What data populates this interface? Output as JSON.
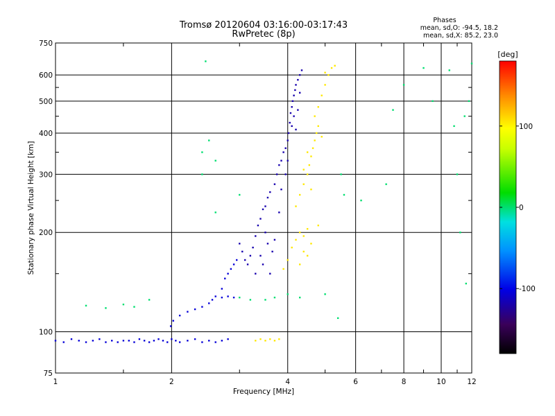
{
  "chart_data": {
    "type": "scatter",
    "title": "Tromsø 20120604 03:16:00-03:17:43",
    "subtitle": "RwPretec (8p)",
    "xlabel": "Frequency [MHz]",
    "ylabel": "Stationary phase Virtual Height [km]",
    "x_scale": "log",
    "y_scale": "log",
    "xlim": [
      1,
      12
    ],
    "ylim": [
      75,
      750
    ],
    "grid": true,
    "x_ticks": [
      1,
      2,
      4,
      6,
      8,
      10,
      12
    ],
    "y_ticks": [
      75,
      100,
      200,
      300,
      400,
      500,
      600,
      750
    ],
    "phase_stats": {
      "heading": "Phases",
      "line_o": "mean, sd,O: -94.5, 18.2",
      "line_x": "mean, sd,X:  85.2, 23.0"
    },
    "colorbar": {
      "label": "[deg]",
      "range": [
        -180,
        180
      ],
      "ticks": [
        100,
        0,
        -100
      ]
    },
    "series": [
      {
        "points": [
          [
            1.0,
            94
          ],
          [
            1.05,
            93
          ],
          [
            1.1,
            95
          ],
          [
            1.15,
            94
          ],
          [
            1.2,
            93
          ],
          [
            1.25,
            94
          ],
          [
            1.3,
            95
          ],
          [
            1.35,
            93
          ],
          [
            1.4,
            94
          ],
          [
            1.45,
            93
          ],
          [
            1.5,
            94
          ],
          [
            1.55,
            94
          ],
          [
            1.6,
            93
          ],
          [
            1.65,
            95
          ],
          [
            1.7,
            94
          ],
          [
            1.75,
            93
          ],
          [
            1.8,
            94
          ],
          [
            1.85,
            95
          ],
          [
            1.9,
            94
          ],
          [
            1.95,
            93
          ],
          [
            2.0,
            95
          ],
          [
            2.05,
            94
          ],
          [
            2.1,
            93
          ],
          [
            2.2,
            94
          ],
          [
            2.3,
            95
          ],
          [
            2.4,
            93
          ],
          [
            2.5,
            94
          ],
          [
            2.6,
            93
          ],
          [
            2.7,
            94
          ],
          [
            2.8,
            95
          ],
          [
            1.99,
            104
          ],
          [
            2.02,
            108
          ],
          [
            2.1,
            112
          ],
          [
            2.2,
            115
          ],
          [
            2.3,
            117
          ],
          [
            2.4,
            119
          ],
          [
            2.5,
            122
          ],
          [
            2.55,
            125
          ],
          [
            2.6,
            128
          ],
          [
            2.7,
            135
          ],
          [
            2.75,
            145
          ],
          [
            2.8,
            150
          ],
          [
            2.85,
            155
          ],
          [
            2.9,
            160
          ],
          [
            2.95,
            165
          ],
          [
            2.7,
            127
          ],
          [
            2.8,
            128
          ],
          [
            2.9,
            127
          ]
        ],
        "phase": -105
      },
      {
        "points": [
          [
            3.0,
            185
          ],
          [
            3.05,
            175
          ],
          [
            3.1,
            165
          ],
          [
            3.15,
            160
          ],
          [
            3.2,
            170
          ],
          [
            3.25,
            180
          ],
          [
            3.3,
            195
          ],
          [
            3.35,
            210
          ],
          [
            3.4,
            220
          ],
          [
            3.45,
            235
          ],
          [
            3.5,
            240
          ],
          [
            3.55,
            255
          ],
          [
            3.6,
            265
          ],
          [
            3.7,
            280
          ],
          [
            3.75,
            300
          ],
          [
            3.8,
            320
          ],
          [
            3.85,
            330
          ],
          [
            3.9,
            350
          ],
          [
            3.95,
            360
          ],
          [
            4.0,
            380
          ],
          [
            4.02,
            400
          ],
          [
            4.05,
            430
          ],
          [
            4.07,
            460
          ],
          [
            4.1,
            480
          ],
          [
            4.12,
            500
          ],
          [
            4.15,
            520
          ],
          [
            4.18,
            540
          ],
          [
            4.2,
            560
          ],
          [
            4.25,
            580
          ],
          [
            4.3,
            600
          ],
          [
            4.35,
            620
          ],
          [
            3.4,
            170
          ],
          [
            3.6,
            150
          ],
          [
            3.7,
            190
          ],
          [
            3.5,
            200
          ],
          [
            3.8,
            230
          ],
          [
            3.3,
            150
          ],
          [
            3.45,
            160
          ],
          [
            3.65,
            175
          ],
          [
            3.55,
            185
          ],
          [
            3.85,
            270
          ],
          [
            3.95,
            300
          ],
          [
            4.0,
            330
          ],
          [
            4.1,
            420
          ],
          [
            4.15,
            450
          ],
          [
            4.2,
            410
          ],
          [
            4.25,
            470
          ],
          [
            4.3,
            530
          ]
        ],
        "phase": -118
      },
      {
        "points": [
          [
            3.3,
            94
          ],
          [
            3.4,
            95
          ],
          [
            3.5,
            94
          ],
          [
            3.6,
            95
          ],
          [
            3.7,
            94
          ],
          [
            3.8,
            95
          ],
          [
            3.9,
            155
          ],
          [
            4.0,
            165
          ],
          [
            4.1,
            180
          ],
          [
            4.2,
            190
          ],
          [
            4.3,
            200
          ],
          [
            4.4,
            195
          ],
          [
            4.5,
            205
          ],
          [
            4.2,
            240
          ],
          [
            4.3,
            260
          ],
          [
            4.4,
            280
          ],
          [
            4.5,
            300
          ],
          [
            4.55,
            320
          ],
          [
            4.6,
            340
          ],
          [
            4.65,
            360
          ],
          [
            4.7,
            380
          ],
          [
            4.75,
            400
          ],
          [
            4.8,
            420
          ],
          [
            4.7,
            450
          ],
          [
            4.8,
            480
          ],
          [
            4.9,
            520
          ],
          [
            5.0,
            560
          ],
          [
            5.1,
            600
          ],
          [
            5.2,
            630
          ],
          [
            5.3,
            640
          ],
          [
            4.4,
            175
          ],
          [
            4.6,
            185
          ],
          [
            4.8,
            210
          ],
          [
            4.3,
            160
          ],
          [
            4.5,
            170
          ],
          [
            4.4,
            310
          ],
          [
            4.6,
            270
          ],
          [
            4.5,
            350
          ],
          [
            4.9,
            390
          ],
          [
            5.0,
            610
          ]
        ],
        "phase": 105
      },
      {
        "points": [
          [
            1.2,
            120
          ],
          [
            1.35,
            118
          ],
          [
            1.5,
            121
          ],
          [
            1.6,
            119
          ],
          [
            1.75,
            125
          ],
          [
            2.4,
            300
          ],
          [
            2.4,
            350
          ],
          [
            2.5,
            380
          ],
          [
            2.6,
            330
          ],
          [
            2.45,
            660
          ],
          [
            2.6,
            230
          ],
          [
            3.0,
            260
          ],
          [
            5.5,
            300
          ],
          [
            5.6,
            260
          ],
          [
            6.2,
            250
          ],
          [
            7.2,
            280
          ],
          [
            7.5,
            470
          ],
          [
            8.0,
            560
          ],
          [
            9.0,
            630
          ],
          [
            9.5,
            500
          ],
          [
            10.5,
            620
          ],
          [
            11.0,
            300
          ],
          [
            11.5,
            450
          ],
          [
            11.8,
            500
          ],
          [
            10.8,
            420
          ],
          [
            11.2,
            200
          ],
          [
            11.6,
            140
          ],
          [
            12.0,
            650
          ],
          [
            5.0,
            130
          ],
          [
            5.4,
            110
          ],
          [
            3.0,
            127
          ],
          [
            3.2,
            125
          ],
          [
            3.5,
            125
          ],
          [
            3.7,
            127
          ],
          [
            4.0,
            130
          ],
          [
            4.3,
            127
          ]
        ],
        "phase": 0
      }
    ]
  }
}
